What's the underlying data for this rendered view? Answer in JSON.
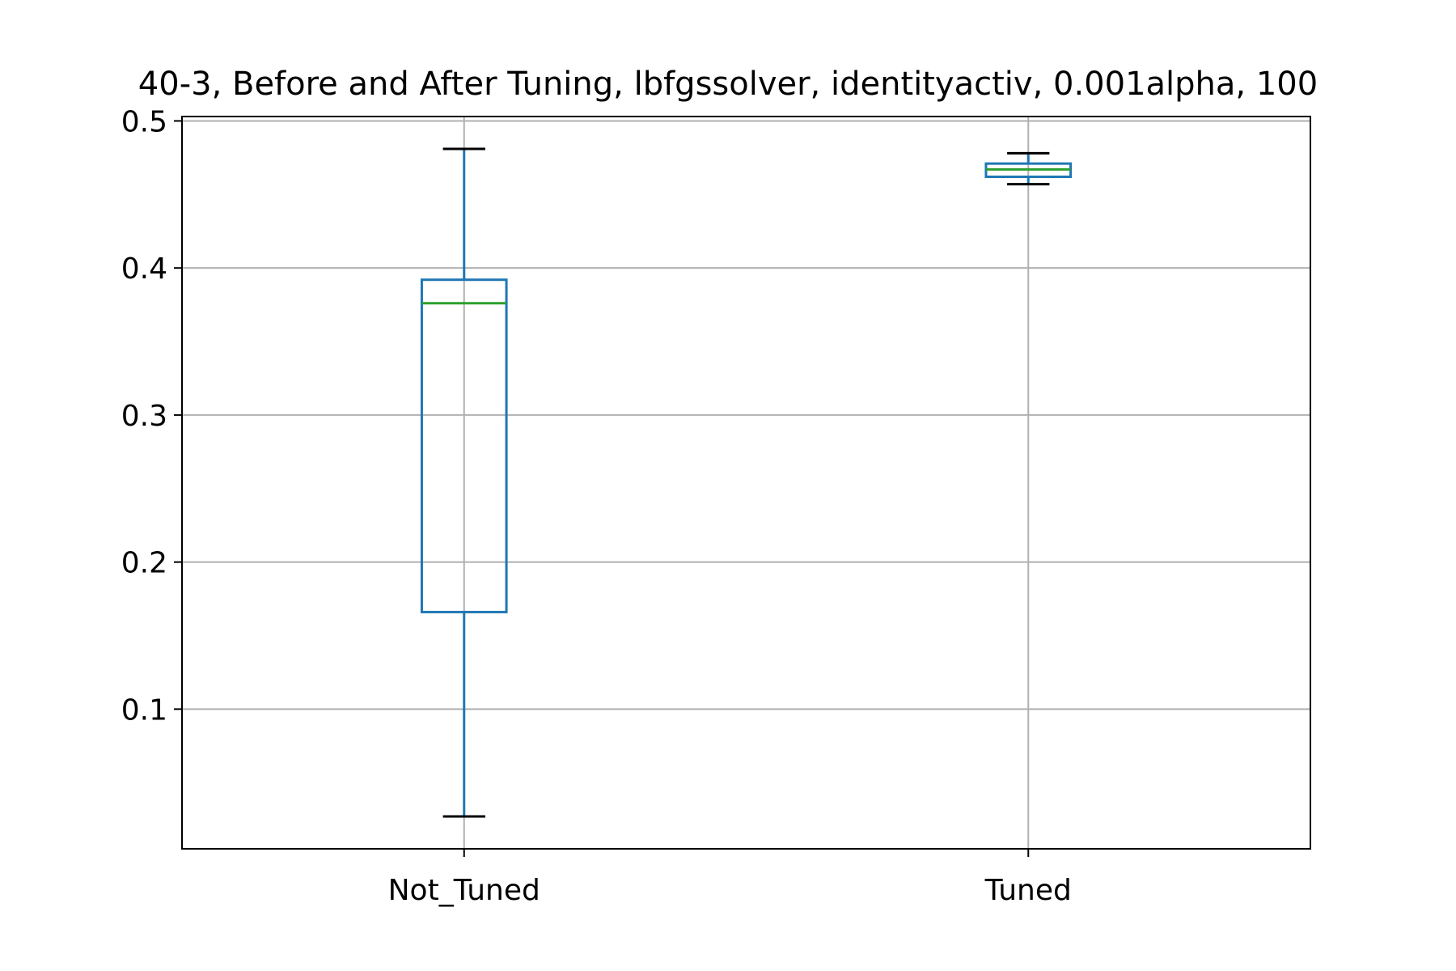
{
  "chart_data": {
    "type": "box",
    "title": "40-3, Before and After Tuning, lbfgssolver, identityactiv, 0.001alpha, 100",
    "xlabel": "",
    "ylabel": "",
    "categories": [
      "Not_Tuned",
      "Tuned"
    ],
    "boxes": [
      {
        "category": "Not_Tuned",
        "whisker_low": 0.027,
        "q1": 0.166,
        "median": 0.376,
        "q3": 0.392,
        "whisker_high": 0.481
      },
      {
        "category": "Tuned",
        "whisker_low": 0.457,
        "q1": 0.462,
        "median": 0.467,
        "q3": 0.471,
        "whisker_high": 0.478
      }
    ],
    "ylim": [
      0.005,
      0.503
    ],
    "yticks": [
      0.1,
      0.2,
      0.3,
      0.4,
      0.5
    ],
    "ytick_labels": [
      "0.1",
      "0.2",
      "0.3",
      "0.4",
      "0.5"
    ],
    "grid": true,
    "legend": "none",
    "colors": {
      "box": "#1f77b4",
      "median": "#2ca02c",
      "caps": "#000000",
      "grid": "#b0b0b0",
      "axes": "#000000"
    }
  }
}
